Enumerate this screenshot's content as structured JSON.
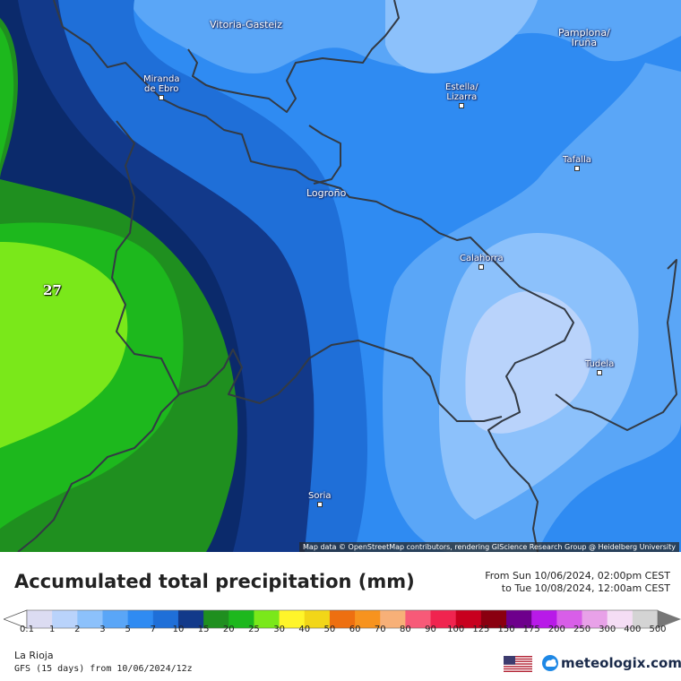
{
  "map": {
    "cities": [
      {
        "id": "vitoria",
        "name": "Vitoria-Gasteiz"
      },
      {
        "id": "pamplona",
        "name": "Pamplona/\nIruña"
      },
      {
        "id": "miranda",
        "name": "Miranda\nde Ebro"
      },
      {
        "id": "estella",
        "name": "Estella/\nLizarra"
      },
      {
        "id": "tafalla",
        "name": "Tafalla"
      },
      {
        "id": "logrono",
        "name": "Logroño"
      },
      {
        "id": "calahorra",
        "name": "Calahorra"
      },
      {
        "id": "tudela",
        "name": "Tudela"
      },
      {
        "id": "soria",
        "name": "Soria"
      }
    ],
    "max_value_label": "27",
    "attribution": "Map data © OpenStreetMap contributors, rendering GIScience Research Group @ Heidelberg University"
  },
  "header": {
    "title": "Accumulated total precipitation (mm)",
    "period_line1": "From Sun 10/06/2024, 02:00pm CEST",
    "period_line2": "to Tue 10/08/2024, 12:00am CEST"
  },
  "legend": {
    "labels": [
      "0.1",
      "1",
      "2",
      "3",
      "5",
      "7",
      "10",
      "15",
      "20",
      "25",
      "30",
      "40",
      "50",
      "60",
      "70",
      "80",
      "90",
      "100",
      "125",
      "150",
      "175",
      "200",
      "250",
      "300",
      "400",
      "500"
    ],
    "colors": [
      "#dcdcf2",
      "#b9d3fb",
      "#8cc1fb",
      "#5aa6f7",
      "#2f8bf2",
      "#1f6fd8",
      "#12398a",
      "#1f8f1f",
      "#1db81d",
      "#7ae81a",
      "#fff52a",
      "#f2d618",
      "#ee6f10",
      "#f7931e",
      "#f7b078",
      "#f75a78",
      "#f0244f",
      "#c8001e",
      "#8a0010",
      "#6e008c",
      "#b81ae8",
      "#d85ee8",
      "#e8a1e8",
      "#f5ddf5",
      "#d4d4d4"
    ]
  },
  "footer": {
    "region": "La Rioja",
    "model": "GFS (15 days) from 10/06/2024/12z",
    "brand": "meteologix.com",
    "flag_icon": "us-flag-icon"
  }
}
